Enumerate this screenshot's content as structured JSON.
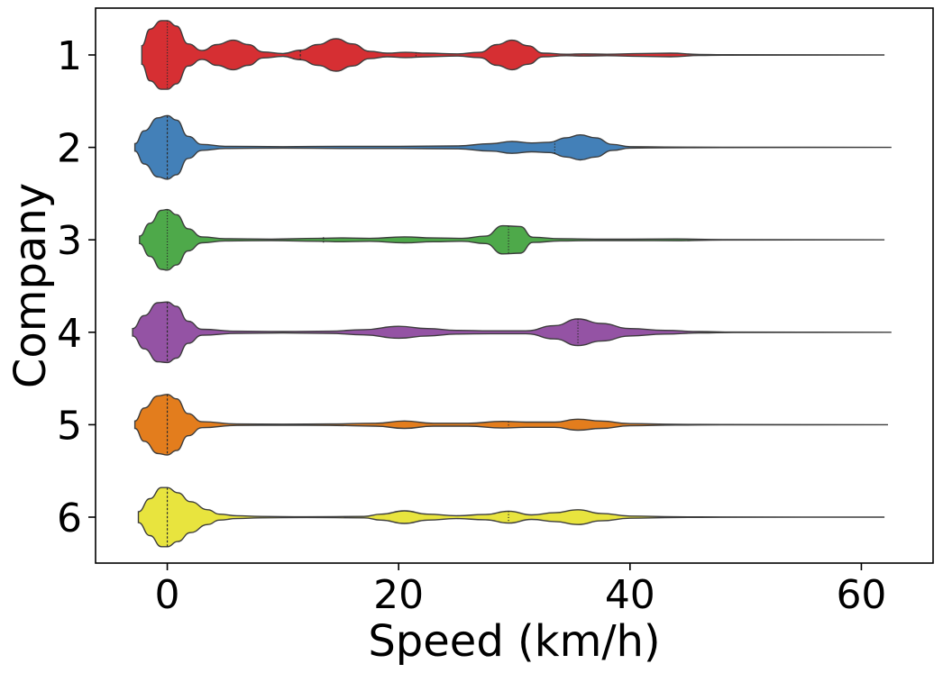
{
  "chart_data": {
    "type": "violin",
    "orientation": "horizontal",
    "xlabel": "Speed (km/h)",
    "ylabel": "Company",
    "xlim": [
      -6.2,
      66.2
    ],
    "x_ticks": [
      "0",
      "20",
      "40",
      "60"
    ],
    "x_tick_values": [
      0,
      20,
      40,
      60
    ],
    "categories": [
      "1",
      "2",
      "3",
      "4",
      "5",
      "6"
    ],
    "inner": "quartile",
    "series": [
      {
        "category": "1",
        "color": "#d62f33",
        "range": [
          -2.2,
          62
        ],
        "density": [
          [
            -2.2,
            0.25
          ],
          [
            -1.5,
            0.7
          ],
          [
            -0.5,
            0.93
          ],
          [
            0,
            0.93
          ],
          [
            0.8,
            0.78
          ],
          [
            1.8,
            0.3
          ],
          [
            3,
            0.12
          ],
          [
            4.3,
            0.28
          ],
          [
            5.7,
            0.4
          ],
          [
            7,
            0.28
          ],
          [
            8.3,
            0.08
          ],
          [
            10,
            0.04
          ],
          [
            11.5,
            0.13
          ],
          [
            13,
            0.28
          ],
          [
            14.6,
            0.44
          ],
          [
            16,
            0.3
          ],
          [
            17.5,
            0.1
          ],
          [
            19,
            0.05
          ],
          [
            20.6,
            0.07
          ],
          [
            22.5,
            0.05
          ],
          [
            25,
            0.03
          ],
          [
            27,
            0.07
          ],
          [
            28.5,
            0.28
          ],
          [
            29.8,
            0.4
          ],
          [
            31.2,
            0.25
          ],
          [
            32.5,
            0.05
          ],
          [
            34.5,
            0.02
          ],
          [
            36,
            0.03
          ],
          [
            38,
            0.02
          ],
          [
            41,
            0.04
          ],
          [
            43.5,
            0.05
          ],
          [
            46,
            0.015
          ],
          [
            48,
            0.008
          ],
          [
            62,
            0
          ]
        ],
        "quartiles": [
          0,
          11.5,
          21.5
        ],
        "median_index": 1
      },
      {
        "category": "2",
        "color": "#4380b8",
        "range": [
          -2.8,
          62.6
        ],
        "density": [
          [
            -2.8,
            0.1
          ],
          [
            -2,
            0.45
          ],
          [
            -0.8,
            0.8
          ],
          [
            0,
            0.86
          ],
          [
            0.8,
            0.74
          ],
          [
            1.8,
            0.3
          ],
          [
            3,
            0.08
          ],
          [
            5,
            0.03
          ],
          [
            10,
            0.02
          ],
          [
            15,
            0.03
          ],
          [
            20,
            0.03
          ],
          [
            25,
            0.04
          ],
          [
            28,
            0.1
          ],
          [
            29.8,
            0.16
          ],
          [
            31.5,
            0.12
          ],
          [
            33,
            0.14
          ],
          [
            34.5,
            0.26
          ],
          [
            35.7,
            0.34
          ],
          [
            37,
            0.26
          ],
          [
            38.5,
            0.08
          ],
          [
            40,
            0.02
          ],
          [
            43,
            0.01
          ],
          [
            48,
            0.005
          ],
          [
            62.6,
            0
          ]
        ],
        "quartiles": [
          0,
          0,
          33.5
        ],
        "median_index": 1
      },
      {
        "category": "3",
        "color": "#4ea94a",
        "range": [
          -2.4,
          62
        ],
        "density": [
          [
            -2.4,
            0.1
          ],
          [
            -1.5,
            0.45
          ],
          [
            -0.5,
            0.8
          ],
          [
            0,
            0.82
          ],
          [
            0.8,
            0.68
          ],
          [
            1.8,
            0.3
          ],
          [
            3,
            0.08
          ],
          [
            5,
            0.03
          ],
          [
            9,
            0.02
          ],
          [
            13,
            0.04
          ],
          [
            15,
            0.05
          ],
          [
            17.5,
            0.04
          ],
          [
            20.5,
            0.08
          ],
          [
            23,
            0.05
          ],
          [
            25.5,
            0.04
          ],
          [
            27.5,
            0.1
          ],
          [
            29,
            0.38
          ],
          [
            30.5,
            0.36
          ],
          [
            31.6,
            0.07
          ],
          [
            34,
            0.03
          ],
          [
            37,
            0.02
          ],
          [
            40,
            0.02
          ],
          [
            44,
            0.025
          ],
          [
            48,
            0.005
          ],
          [
            62,
            0
          ]
        ],
        "quartiles": [
          0,
          13.5,
          29.5
        ],
        "median_index": 1
      },
      {
        "category": "4",
        "color": "#9453a4",
        "range": [
          -3,
          62.6
        ],
        "density": [
          [
            -3,
            0.1
          ],
          [
            -2,
            0.45
          ],
          [
            -0.8,
            0.8
          ],
          [
            0,
            0.82
          ],
          [
            0.8,
            0.7
          ],
          [
            1.8,
            0.3
          ],
          [
            3,
            0.08
          ],
          [
            6,
            0.03
          ],
          [
            10,
            0.02
          ],
          [
            14,
            0.03
          ],
          [
            17,
            0.07
          ],
          [
            20,
            0.16
          ],
          [
            22.5,
            0.1
          ],
          [
            25,
            0.05
          ],
          [
            28,
            0.04
          ],
          [
            31,
            0.04
          ],
          [
            33.5,
            0.18
          ],
          [
            35.5,
            0.36
          ],
          [
            37.5,
            0.24
          ],
          [
            40,
            0.1
          ],
          [
            43,
            0.05
          ],
          [
            46,
            0.02
          ],
          [
            49,
            0.005
          ],
          [
            62.6,
            0
          ]
        ],
        "quartiles": [
          0,
          0,
          35.5
        ],
        "median_index": 1
      },
      {
        "category": "5",
        "color": "#e37d1d",
        "range": [
          -2.8,
          62.3
        ],
        "density": [
          [
            -2.8,
            0.1
          ],
          [
            -2,
            0.45
          ],
          [
            -0.8,
            0.78
          ],
          [
            0,
            0.82
          ],
          [
            0.8,
            0.7
          ],
          [
            1.8,
            0.3
          ],
          [
            3,
            0.08
          ],
          [
            6,
            0.02
          ],
          [
            10,
            0.015
          ],
          [
            14,
            0.02
          ],
          [
            18,
            0.04
          ],
          [
            20.5,
            0.1
          ],
          [
            23,
            0.04
          ],
          [
            26,
            0.04
          ],
          [
            29,
            0.09
          ],
          [
            31,
            0.07
          ],
          [
            33.5,
            0.07
          ],
          [
            35.5,
            0.15
          ],
          [
            37.5,
            0.1
          ],
          [
            40,
            0.03
          ],
          [
            44,
            0.01
          ],
          [
            48,
            0.005
          ],
          [
            62.3,
            0
          ]
        ],
        "quartiles": [
          0,
          0,
          29.5
        ],
        "median_index": 1
      },
      {
        "category": "6",
        "color": "#e8e43e",
        "range": [
          -2.5,
          62
        ],
        "density": [
          [
            -2.5,
            0.15
          ],
          [
            -1.5,
            0.5
          ],
          [
            -0.5,
            0.8
          ],
          [
            0,
            0.8
          ],
          [
            0.9,
            0.66
          ],
          [
            2,
            0.42
          ],
          [
            3.5,
            0.2
          ],
          [
            4.5,
            0.08
          ],
          [
            6,
            0.04
          ],
          [
            8,
            0.02
          ],
          [
            12,
            0.01
          ],
          [
            17,
            0.02
          ],
          [
            18.5,
            0.08
          ],
          [
            20.5,
            0.17
          ],
          [
            22.5,
            0.08
          ],
          [
            25,
            0.04
          ],
          [
            27.5,
            0.07
          ],
          [
            29.5,
            0.16
          ],
          [
            31.5,
            0.06
          ],
          [
            33.5,
            0.12
          ],
          [
            35.5,
            0.2
          ],
          [
            37.5,
            0.1
          ],
          [
            40,
            0.03
          ],
          [
            44,
            0.01
          ],
          [
            48,
            0.005
          ],
          [
            62,
            0
          ]
        ],
        "quartiles": [
          0,
          0,
          29.5
        ],
        "median_index": 1
      }
    ]
  }
}
